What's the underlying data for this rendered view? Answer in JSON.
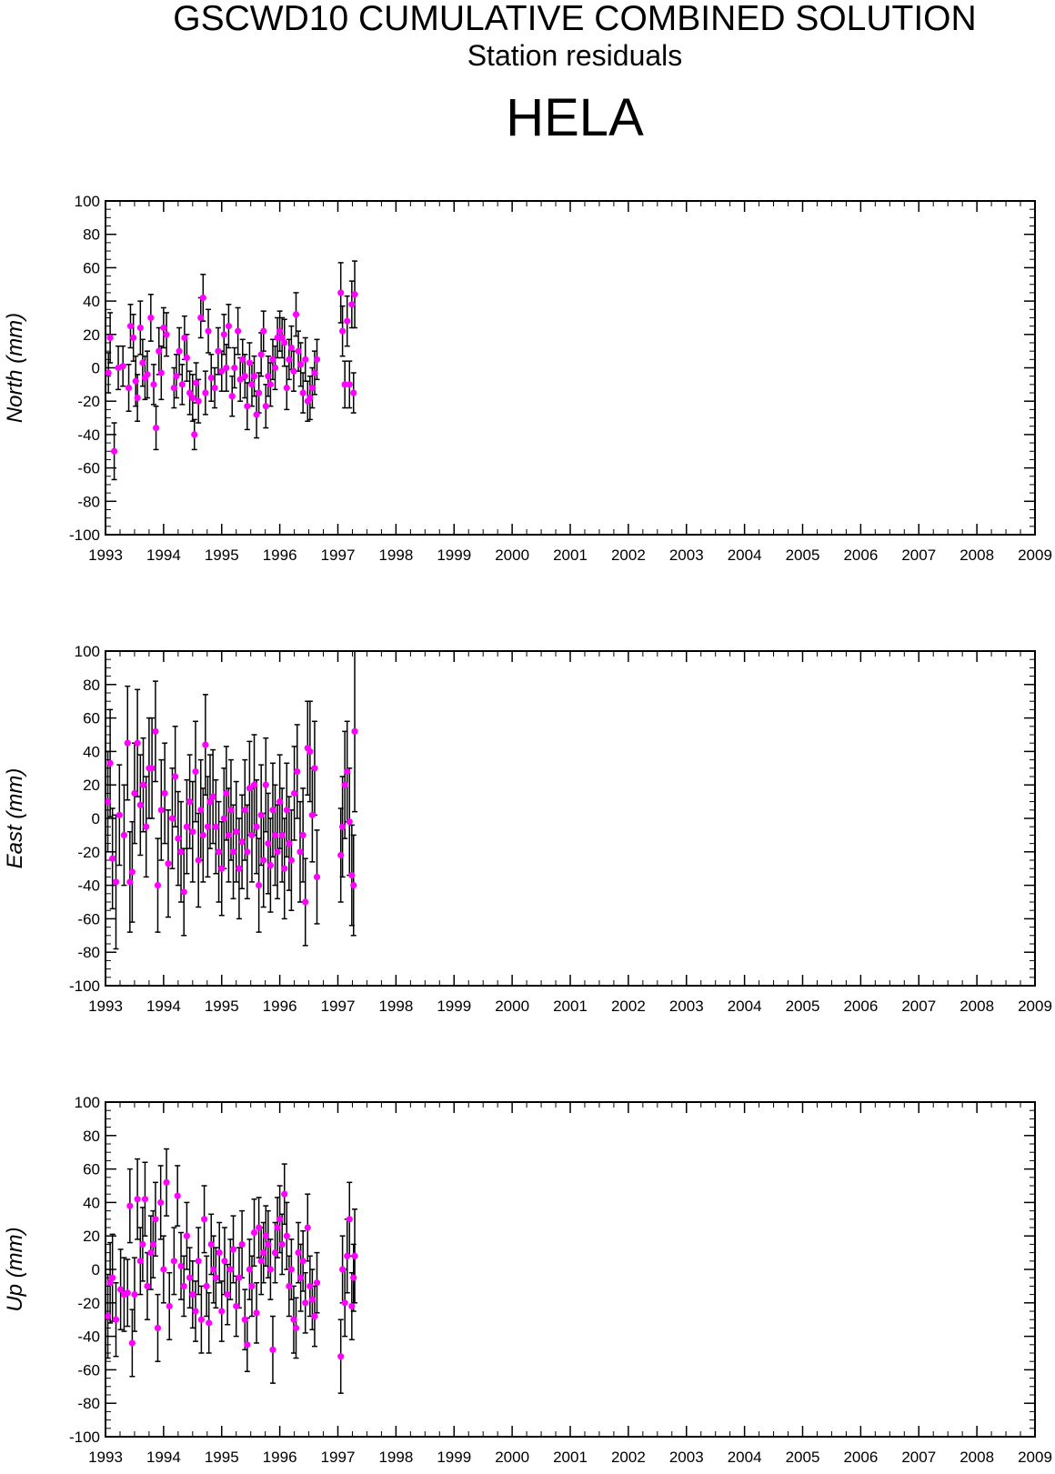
{
  "header": {
    "title": "GSCWD10 CUMULATIVE COMBINED SOLUTION",
    "subtitle": "Station residuals",
    "station": "HELA"
  },
  "colors": {
    "marker": "#ff00ff",
    "errorbar": "#000000",
    "axis": "#000000"
  },
  "chart_data": [
    {
      "type": "scatter",
      "ylabel": "North (mm)",
      "xlim": [
        1993,
        2009
      ],
      "ylim": [
        -100,
        100
      ],
      "xticks": [
        1993,
        1994,
        1995,
        1996,
        1997,
        1998,
        1999,
        2000,
        2001,
        2002,
        2003,
        2004,
        2005,
        2006,
        2007,
        2008,
        2009
      ],
      "yticks": [
        -100,
        -80,
        -60,
        -40,
        -20,
        0,
        20,
        40,
        60,
        80,
        100
      ],
      "grid": false,
      "points": [
        [
          1993.05,
          -3,
          12
        ],
        [
          1993.08,
          18,
          15
        ],
        [
          1993.15,
          -50,
          17
        ],
        [
          1993.22,
          0,
          13
        ],
        [
          1993.3,
          1,
          12
        ],
        [
          1993.4,
          -12,
          14
        ],
        [
          1993.43,
          25,
          13
        ],
        [
          1993.48,
          18,
          14
        ],
        [
          1993.52,
          -8,
          15
        ],
        [
          1993.55,
          -18,
          14
        ],
        [
          1993.6,
          24,
          16
        ],
        [
          1993.64,
          3,
          14
        ],
        [
          1993.68,
          -6,
          13
        ],
        [
          1993.72,
          -4,
          14
        ],
        [
          1993.78,
          30,
          14
        ],
        [
          1993.83,
          -10,
          12
        ],
        [
          1993.87,
          -36,
          13
        ],
        [
          1993.92,
          10,
          14
        ],
        [
          1993.96,
          -3,
          16
        ],
        [
          1994.0,
          24,
          12
        ],
        [
          1994.05,
          20,
          13
        ],
        [
          1994.18,
          -12,
          12
        ],
        [
          1994.22,
          -5,
          13
        ],
        [
          1994.27,
          10,
          14
        ],
        [
          1994.32,
          -10,
          12
        ],
        [
          1994.36,
          18,
          13
        ],
        [
          1994.4,
          6,
          14
        ],
        [
          1994.45,
          -15,
          13
        ],
        [
          1994.5,
          -18,
          14
        ],
        [
          1994.53,
          -40,
          9
        ],
        [
          1994.56,
          -9,
          12
        ],
        [
          1994.6,
          -20,
          13
        ],
        [
          1994.64,
          30,
          12
        ],
        [
          1994.68,
          42,
          14
        ],
        [
          1994.72,
          -15,
          13
        ],
        [
          1994.77,
          22,
          13
        ],
        [
          1994.82,
          -6,
          14
        ],
        [
          1994.88,
          -12,
          12
        ],
        [
          1994.94,
          10,
          14
        ],
        [
          1995.0,
          -2,
          12
        ],
        [
          1995.04,
          20,
          12
        ],
        [
          1995.08,
          0,
          14
        ],
        [
          1995.12,
          25,
          13
        ],
        [
          1995.18,
          -17,
          12
        ],
        [
          1995.22,
          0,
          12
        ],
        [
          1995.28,
          22,
          14
        ],
        [
          1995.32,
          -7,
          13
        ],
        [
          1995.36,
          5,
          12
        ],
        [
          1995.4,
          -5,
          13
        ],
        [
          1995.44,
          -23,
          14
        ],
        [
          1995.48,
          3,
          12
        ],
        [
          1995.52,
          -10,
          13
        ],
        [
          1995.56,
          -5,
          12
        ],
        [
          1995.6,
          -28,
          14
        ],
        [
          1995.64,
          -15,
          12
        ],
        [
          1995.68,
          8,
          13
        ],
        [
          1995.72,
          22,
          12
        ],
        [
          1995.76,
          -23,
          13
        ],
        [
          1995.8,
          -5,
          12
        ],
        [
          1995.84,
          -10,
          13
        ],
        [
          1995.88,
          5,
          12
        ],
        [
          1995.92,
          0,
          13
        ],
        [
          1995.96,
          18,
          12
        ],
        [
          1996.0,
          22,
          12
        ],
        [
          1996.04,
          18,
          12
        ],
        [
          1996.08,
          15,
          14
        ],
        [
          1996.12,
          -12,
          13
        ],
        [
          1996.16,
          5,
          12
        ],
        [
          1996.2,
          12,
          13
        ],
        [
          1996.24,
          -2,
          12
        ],
        [
          1996.28,
          32,
          13
        ],
        [
          1996.32,
          10,
          12
        ],
        [
          1996.36,
          2,
          13
        ],
        [
          1996.4,
          -15,
          12
        ],
        [
          1996.44,
          5,
          13
        ],
        [
          1996.48,
          -20,
          12
        ],
        [
          1996.52,
          -18,
          13
        ],
        [
          1996.56,
          -12,
          12
        ],
        [
          1996.6,
          -3,
          13
        ],
        [
          1996.64,
          5,
          12
        ],
        [
          1997.05,
          45,
          18
        ],
        [
          1997.08,
          22,
          15
        ],
        [
          1997.12,
          -10,
          14
        ],
        [
          1997.16,
          28,
          15
        ],
        [
          1997.2,
          -10,
          14
        ],
        [
          1997.24,
          38,
          14
        ],
        [
          1997.27,
          -15,
          12
        ],
        [
          1997.29,
          44,
          20
        ]
      ]
    },
    {
      "type": "scatter",
      "ylabel": "East (mm)",
      "xlim": [
        1993,
        2009
      ],
      "ylim": [
        -100,
        100
      ],
      "xticks": [
        1993,
        1994,
        1995,
        1996,
        1997,
        1998,
        1999,
        2000,
        2001,
        2002,
        2003,
        2004,
        2005,
        2006,
        2007,
        2008,
        2009
      ],
      "yticks": [
        -100,
        -80,
        -60,
        -40,
        -20,
        0,
        20,
        40,
        60,
        80,
        100
      ],
      "grid": false,
      "points": [
        [
          1993.04,
          10,
          30
        ],
        [
          1993.08,
          33,
          32
        ],
        [
          1993.12,
          -24,
          30
        ],
        [
          1993.18,
          -38,
          40
        ],
        [
          1993.24,
          2,
          30
        ],
        [
          1993.32,
          -10,
          30
        ],
        [
          1993.38,
          45,
          34
        ],
        [
          1993.42,
          -38,
          30
        ],
        [
          1993.46,
          -32,
          30
        ],
        [
          1993.5,
          15,
          30
        ],
        [
          1993.55,
          45,
          32
        ],
        [
          1993.6,
          8,
          30
        ],
        [
          1993.65,
          20,
          28
        ],
        [
          1993.7,
          -5,
          30
        ],
        [
          1993.75,
          30,
          30
        ],
        [
          1993.8,
          30,
          30
        ],
        [
          1993.86,
          52,
          30
        ],
        [
          1993.9,
          -40,
          28
        ],
        [
          1993.96,
          5,
          30
        ],
        [
          1994.02,
          15,
          30
        ],
        [
          1994.08,
          -27,
          32
        ],
        [
          1994.15,
          0,
          30
        ],
        [
          1994.2,
          25,
          30
        ],
        [
          1994.25,
          -12,
          28
        ],
        [
          1994.3,
          -20,
          30
        ],
        [
          1994.35,
          -44,
          26
        ],
        [
          1994.4,
          -5,
          28
        ],
        [
          1994.45,
          10,
          28
        ],
        [
          1994.5,
          -8,
          30
        ],
        [
          1994.55,
          28,
          30
        ],
        [
          1994.6,
          -25,
          28
        ],
        [
          1994.64,
          5,
          30
        ],
        [
          1994.68,
          -10,
          28
        ],
        [
          1994.72,
          44,
          30
        ],
        [
          1994.76,
          -5,
          30
        ],
        [
          1994.8,
          10,
          28
        ],
        [
          1994.85,
          13,
          28
        ],
        [
          1994.9,
          -5,
          28
        ],
        [
          1994.95,
          -20,
          30
        ],
        [
          1995.0,
          -30,
          28
        ],
        [
          1995.04,
          0,
          30
        ],
        [
          1995.08,
          15,
          28
        ],
        [
          1995.12,
          -10,
          28
        ],
        [
          1995.16,
          5,
          30
        ],
        [
          1995.2,
          -20,
          28
        ],
        [
          1995.25,
          -8,
          30
        ],
        [
          1995.3,
          -30,
          30
        ],
        [
          1995.35,
          -14,
          28
        ],
        [
          1995.4,
          5,
          30
        ],
        [
          1995.44,
          -20,
          28
        ],
        [
          1995.48,
          18,
          28
        ],
        [
          1995.52,
          -10,
          28
        ],
        [
          1995.56,
          20,
          30
        ],
        [
          1995.6,
          -5,
          28
        ],
        [
          1995.64,
          -40,
          28
        ],
        [
          1995.68,
          2,
          30
        ],
        [
          1995.72,
          -25,
          28
        ],
        [
          1995.76,
          20,
          28
        ],
        [
          1995.8,
          -15,
          30
        ],
        [
          1995.84,
          -28,
          28
        ],
        [
          1995.88,
          5,
          28
        ],
        [
          1995.92,
          -10,
          30
        ],
        [
          1995.96,
          -20,
          28
        ],
        [
          1996.0,
          10,
          28
        ],
        [
          1996.04,
          -10,
          28
        ],
        [
          1996.08,
          -30,
          30
        ],
        [
          1996.12,
          5,
          28
        ],
        [
          1996.16,
          -15,
          28
        ],
        [
          1996.2,
          -25,
          30
        ],
        [
          1996.25,
          15,
          28
        ],
        [
          1996.3,
          28,
          28
        ],
        [
          1996.35,
          -20,
          30
        ],
        [
          1996.4,
          -10,
          28
        ],
        [
          1996.44,
          -50,
          26
        ],
        [
          1996.48,
          42,
          28
        ],
        [
          1996.52,
          40,
          30
        ],
        [
          1996.56,
          2,
          28
        ],
        [
          1996.6,
          30,
          28
        ],
        [
          1996.64,
          -35,
          28
        ],
        [
          1997.05,
          -22,
          28
        ],
        [
          1997.08,
          -5,
          30
        ],
        [
          1997.12,
          20,
          32
        ],
        [
          1997.16,
          28,
          30
        ],
        [
          1997.2,
          -2,
          32
        ],
        [
          1997.24,
          -34,
          30
        ],
        [
          1997.27,
          -40,
          30
        ],
        [
          1997.29,
          52,
          48
        ]
      ]
    },
    {
      "type": "scatter",
      "ylabel": "Up (mm)",
      "xlim": [
        1993,
        2009
      ],
      "ylim": [
        -100,
        100
      ],
      "xticks": [
        1993,
        1994,
        1995,
        1996,
        1997,
        1998,
        1999,
        2000,
        2001,
        2002,
        2003,
        2004,
        2005,
        2006,
        2007,
        2008,
        2009
      ],
      "yticks": [
        -100,
        -80,
        -60,
        -40,
        -20,
        0,
        20,
        40,
        60,
        80,
        100
      ],
      "grid": false,
      "points": [
        [
          1993.04,
          -28,
          25
        ],
        [
          1993.08,
          -8,
          24
        ],
        [
          1993.12,
          -5,
          26
        ],
        [
          1993.18,
          -30,
          22
        ],
        [
          1993.26,
          -12,
          24
        ],
        [
          1993.32,
          -15,
          22
        ],
        [
          1993.38,
          -14,
          20
        ],
        [
          1993.42,
          38,
          22
        ],
        [
          1993.46,
          -44,
          20
        ],
        [
          1993.5,
          -15,
          22
        ],
        [
          1993.55,
          42,
          24
        ],
        [
          1993.6,
          5,
          20
        ],
        [
          1993.64,
          15,
          22
        ],
        [
          1993.68,
          42,
          22
        ],
        [
          1993.72,
          -10,
          20
        ],
        [
          1993.78,
          10,
          22
        ],
        [
          1993.82,
          15,
          20
        ],
        [
          1993.86,
          30,
          22
        ],
        [
          1993.9,
          -35,
          20
        ],
        [
          1993.95,
          40,
          22
        ],
        [
          1994.0,
          0,
          20
        ],
        [
          1994.05,
          52,
          20
        ],
        [
          1994.1,
          -22,
          20
        ],
        [
          1994.18,
          5,
          20
        ],
        [
          1994.24,
          44,
          18
        ],
        [
          1994.3,
          2,
          20
        ],
        [
          1994.35,
          -10,
          18
        ],
        [
          1994.4,
          20,
          20
        ],
        [
          1994.45,
          -5,
          18
        ],
        [
          1994.5,
          -15,
          20
        ],
        [
          1994.55,
          -25,
          18
        ],
        [
          1994.6,
          5,
          20
        ],
        [
          1994.65,
          -30,
          20
        ],
        [
          1994.7,
          30,
          20
        ],
        [
          1994.74,
          -10,
          18
        ],
        [
          1994.78,
          -32,
          18
        ],
        [
          1994.82,
          15,
          18
        ],
        [
          1994.86,
          0,
          20
        ],
        [
          1994.9,
          -5,
          18
        ],
        [
          1994.96,
          10,
          18
        ],
        [
          1995.0,
          -25,
          18
        ],
        [
          1995.05,
          5,
          20
        ],
        [
          1995.1,
          -15,
          18
        ],
        [
          1995.15,
          0,
          18
        ],
        [
          1995.2,
          12,
          20
        ],
        [
          1995.25,
          -22,
          18
        ],
        [
          1995.3,
          -5,
          18
        ],
        [
          1995.35,
          15,
          20
        ],
        [
          1995.4,
          -30,
          18
        ],
        [
          1995.44,
          -45,
          16
        ],
        [
          1995.48,
          0,
          18
        ],
        [
          1995.52,
          -10,
          18
        ],
        [
          1995.56,
          22,
          20
        ],
        [
          1995.6,
          -26,
          18
        ],
        [
          1995.64,
          25,
          18
        ],
        [
          1995.68,
          5,
          20
        ],
        [
          1995.72,
          10,
          18
        ],
        [
          1995.76,
          20,
          18
        ],
        [
          1995.8,
          15,
          20
        ],
        [
          1995.84,
          0,
          18
        ],
        [
          1995.88,
          -48,
          20
        ],
        [
          1995.92,
          10,
          18
        ],
        [
          1995.96,
          25,
          18
        ],
        [
          1996.0,
          30,
          20
        ],
        [
          1996.04,
          15,
          18
        ],
        [
          1996.08,
          45,
          18
        ],
        [
          1996.12,
          20,
          20
        ],
        [
          1996.16,
          -10,
          18
        ],
        [
          1996.2,
          0,
          18
        ],
        [
          1996.24,
          -30,
          20
        ],
        [
          1996.28,
          -35,
          18
        ],
        [
          1996.32,
          10,
          18
        ],
        [
          1996.36,
          -5,
          20
        ],
        [
          1996.4,
          5,
          18
        ],
        [
          1996.44,
          -20,
          18
        ],
        [
          1996.48,
          25,
          20
        ],
        [
          1996.52,
          -10,
          18
        ],
        [
          1996.56,
          -18,
          18
        ],
        [
          1996.6,
          -28,
          18
        ],
        [
          1996.64,
          -8,
          18
        ],
        [
          1997.05,
          -52,
          22
        ],
        [
          1997.08,
          0,
          20
        ],
        [
          1997.12,
          -20,
          20
        ],
        [
          1997.16,
          8,
          22
        ],
        [
          1997.2,
          30,
          22
        ],
        [
          1997.24,
          -22,
          20
        ],
        [
          1997.27,
          -5,
          20
        ],
        [
          1997.29,
          8,
          28
        ]
      ]
    }
  ]
}
